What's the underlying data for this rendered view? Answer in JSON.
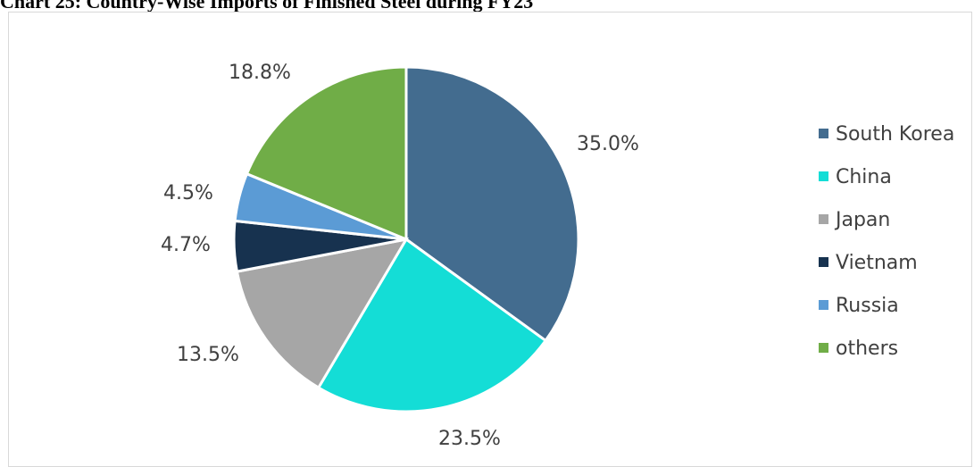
{
  "chart_data": {
    "type": "pie",
    "title": "Chart 25: Country-Wise Imports of Finished Steel during FY23",
    "categories": [
      "South Korea",
      "China",
      "Japan",
      "Vietnam",
      "Russia",
      "others"
    ],
    "values": [
      35.0,
      23.5,
      13.5,
      4.7,
      4.5,
      18.8
    ],
    "labels": [
      "35.0%",
      "23.5%",
      "13.5%",
      "4.7%",
      "4.5%",
      "18.8%"
    ],
    "colors": [
      "#436c8f",
      "#14ddd6",
      "#a6a6a6",
      "#17324f",
      "#5b9bd5",
      "#70ad47"
    ],
    "legend_position": "right"
  }
}
